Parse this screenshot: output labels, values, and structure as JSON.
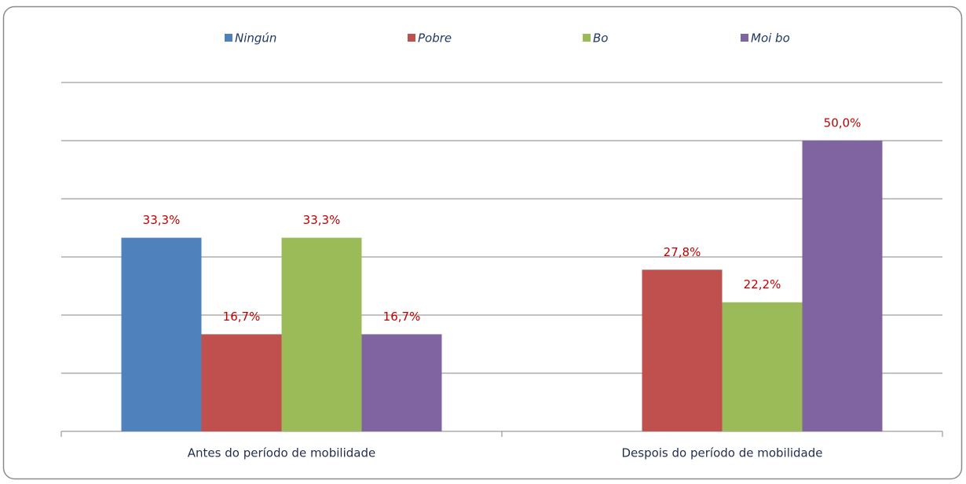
{
  "chart_data": {
    "type": "bar",
    "categories": [
      "Antes do período de mobilidade",
      "Despois do período de mobilidade"
    ],
    "series": [
      {
        "name": "Ningún",
        "color": "#4f81bd",
        "values": [
          33.3,
          null
        ],
        "value_labels": [
          "33,3%",
          null
        ]
      },
      {
        "name": "Pobre",
        "color": "#c0504d",
        "values": [
          16.7,
          27.8
        ],
        "value_labels": [
          "16,7%",
          "27,8%"
        ]
      },
      {
        "name": "Bo",
        "color": "#9bbb59",
        "values": [
          33.3,
          22.2
        ],
        "value_labels": [
          "33,3%",
          "22,2%"
        ]
      },
      {
        "name": "Moi bo",
        "color": "#8064a2",
        "values": [
          16.7,
          50.0
        ],
        "value_labels": [
          "16,7%",
          "50,0%"
        ]
      }
    ],
    "ylim": [
      0,
      60
    ],
    "yticks": [
      0,
      10,
      20,
      30,
      40,
      50,
      60
    ],
    "grid": true,
    "legend": "top"
  }
}
